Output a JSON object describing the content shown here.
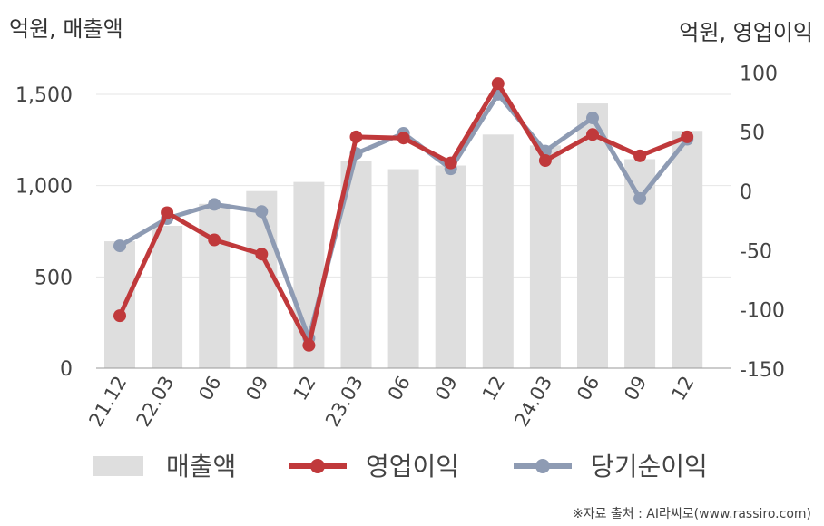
{
  "units": {
    "left": "억원, 매출액",
    "right": "억원, 영업이익"
  },
  "source": "※자료 출처 : AI라씨로(www.rassiro.com)",
  "chart_data": {
    "type": "bar+line",
    "categories": [
      "21.12",
      "22.03",
      "06",
      "09",
      "12",
      "23.03",
      "06",
      "09",
      "12",
      "24.03",
      "06",
      "09",
      "12"
    ],
    "left_axis": {
      "ticks": [
        0,
        500,
        1000,
        1500
      ],
      "tick_labels": [
        "0",
        "500",
        "1,000",
        "1,500"
      ],
      "range": [
        0,
        1750
      ]
    },
    "right_axis": {
      "ticks": [
        -150,
        -100,
        -50,
        0,
        50,
        100
      ],
      "tick_labels": [
        "-150",
        "-100",
        "-50",
        "0",
        "50",
        "100"
      ],
      "range": [
        -150,
        115
      ]
    },
    "series": [
      {
        "name": "매출액",
        "type": "bar",
        "axis": "left",
        "color": "#dedede",
        "values": [
          695,
          780,
          900,
          970,
          1020,
          1135,
          1090,
          1110,
          1280,
          1220,
          1450,
          1145,
          1300
        ]
      },
      {
        "name": "영업이익",
        "type": "line",
        "axis": "right",
        "color": "#c0393b",
        "values": [
          -105,
          -18,
          -41,
          -53,
          -130,
          46,
          45,
          24,
          91,
          26,
          48,
          30,
          46
        ]
      },
      {
        "name": "당기순이익",
        "type": "line",
        "axis": "right",
        "color": "#8e9bb3",
        "values": [
          -46,
          -23,
          -11,
          -17,
          -124,
          32,
          49,
          19,
          82,
          34,
          62,
          -6,
          44
        ]
      }
    ],
    "grid": true,
    "legend_position": "bottom"
  }
}
